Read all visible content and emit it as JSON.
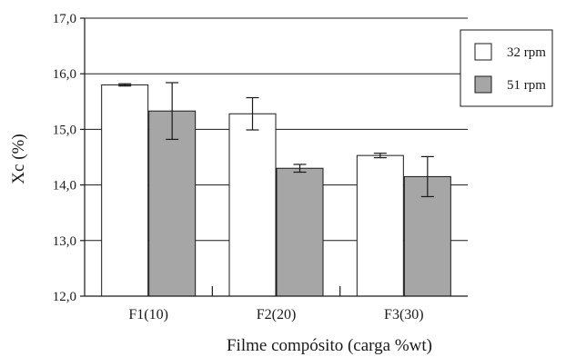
{
  "chart_data": {
    "type": "bar",
    "title": "",
    "xlabel": "Filme compósito (carga %wt)",
    "ylabel": "Xc (%)",
    "ylim": [
      12,
      17
    ],
    "yticks": [
      "12,0",
      "13,0",
      "14,0",
      "15,0",
      "16,0",
      "17,0"
    ],
    "grid": true,
    "legend_position": "top-right",
    "categories": [
      "F1(10)",
      "F2(20)",
      "F3(30)"
    ],
    "series": [
      {
        "name": "32 rpm",
        "color": "#ffffff",
        "values": [
          15.8,
          15.28,
          14.53
        ],
        "error": [
          0.02,
          0.29,
          0.04
        ]
      },
      {
        "name": "51 rpm",
        "color": "#a6a6a6",
        "values": [
          15.33,
          14.3,
          14.15
        ],
        "error": [
          0.51,
          0.07,
          0.36
        ]
      }
    ]
  }
}
